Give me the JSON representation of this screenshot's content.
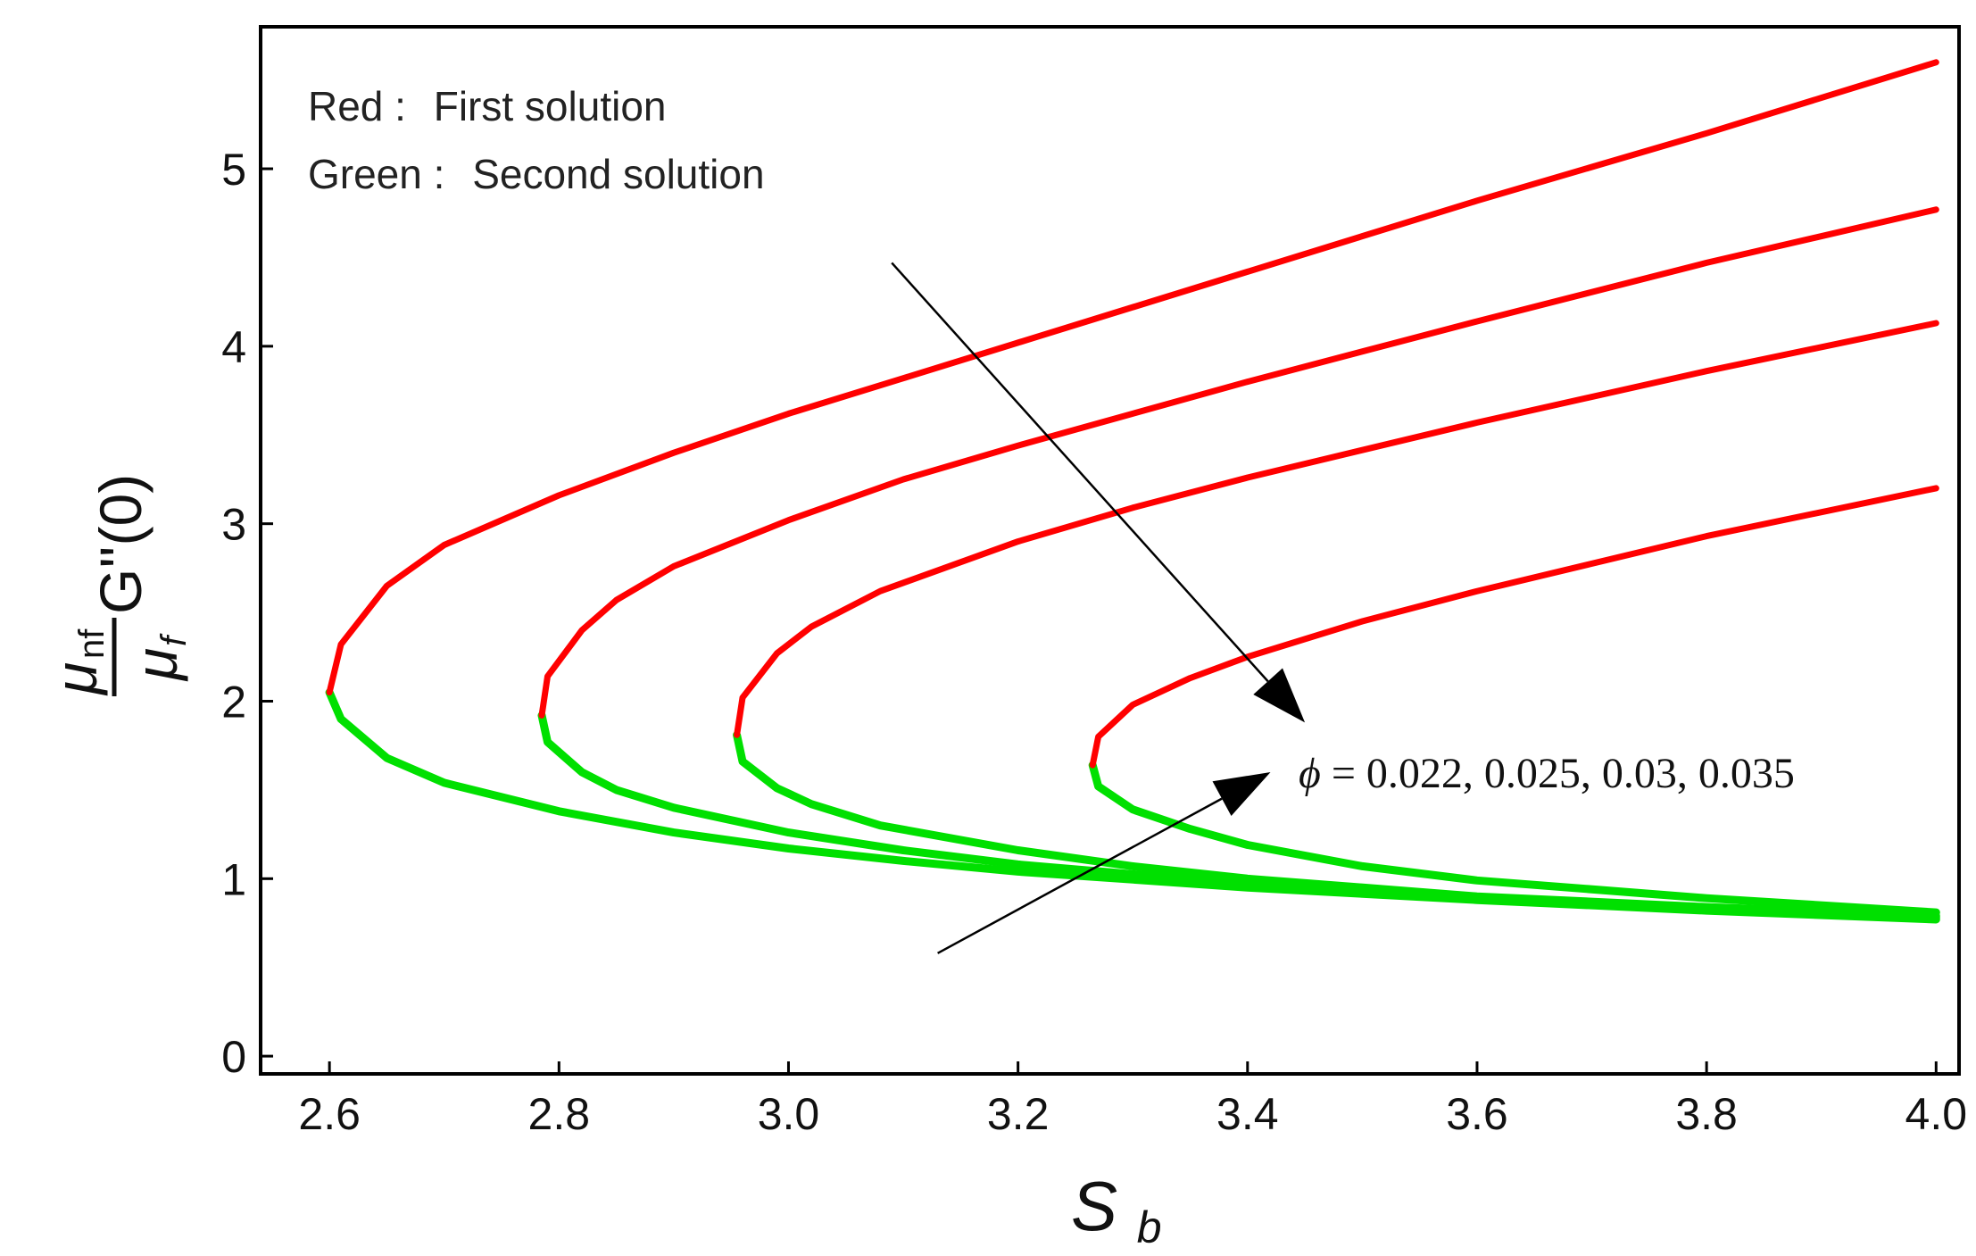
{
  "chart_data": {
    "type": "line",
    "xlabel": {
      "main": "S",
      "sub": "b"
    },
    "ylabel": {
      "num_main": "μ",
      "num_sub": "nf",
      "den_main": "μ",
      "den_sub": "f",
      "expr": "G''(0)"
    },
    "xlim": [
      2.54,
      4.02
    ],
    "ylim": [
      -0.1,
      5.8
    ],
    "x_ticks": [
      2.6,
      2.8,
      3.0,
      3.2,
      3.4,
      3.6,
      3.8,
      4.0
    ],
    "x_tick_labels": [
      "2.6",
      "2.8",
      "3.0",
      "3.2",
      "3.4",
      "3.6",
      "3.8",
      "4.0"
    ],
    "y_ticks": [
      0,
      1,
      2,
      3,
      4,
      5
    ],
    "y_tick_labels": [
      "0",
      "1",
      "2",
      "3",
      "4",
      "5"
    ],
    "legend": {
      "placement": "top-left",
      "lines": [
        {
          "label": "Red :",
          "text": "First solution"
        },
        {
          "label": "Green :",
          "text": "Second solution"
        }
      ]
    },
    "annotation": {
      "symbol": "ϕ",
      "text": " = 0.022, 0.025, 0.03, 0.035"
    },
    "colors": {
      "first": "#ff0000",
      "second": "#00e000",
      "frame": "#000000",
      "arrow": "#000000"
    },
    "series": [
      {
        "phi": 0.022,
        "first": {
          "x": [
            2.6,
            2.61,
            2.65,
            2.7,
            2.8,
            2.9,
            3.0,
            3.1,
            3.2,
            3.4,
            3.6,
            3.8,
            4.0
          ],
          "y": [
            2.05,
            2.32,
            2.65,
            2.88,
            3.16,
            3.4,
            3.62,
            3.82,
            4.02,
            4.42,
            4.82,
            5.2,
            5.6
          ]
        },
        "second": {
          "x": [
            2.6,
            2.61,
            2.65,
            2.7,
            2.8,
            2.9,
            3.0,
            3.1,
            3.2,
            3.4,
            3.6,
            3.8,
            4.0
          ],
          "y": [
            2.05,
            1.9,
            1.68,
            1.54,
            1.38,
            1.26,
            1.17,
            1.1,
            1.04,
            0.95,
            0.88,
            0.82,
            0.77
          ]
        }
      },
      {
        "phi": 0.025,
        "first": {
          "x": [
            2.785,
            2.79,
            2.82,
            2.85,
            2.9,
            3.0,
            3.1,
            3.2,
            3.4,
            3.6,
            3.8,
            4.0
          ],
          "y": [
            1.92,
            2.14,
            2.4,
            2.57,
            2.76,
            3.02,
            3.25,
            3.44,
            3.8,
            4.14,
            4.47,
            4.77
          ]
        },
        "second": {
          "x": [
            2.785,
            2.79,
            2.82,
            2.85,
            2.9,
            3.0,
            3.1,
            3.2,
            3.4,
            3.6,
            3.8,
            4.0
          ],
          "y": [
            1.92,
            1.77,
            1.6,
            1.5,
            1.4,
            1.26,
            1.16,
            1.08,
            0.97,
            0.89,
            0.83,
            0.78
          ]
        }
      },
      {
        "phi": 0.03,
        "first": {
          "x": [
            2.955,
            2.96,
            2.99,
            3.02,
            3.08,
            3.2,
            3.3,
            3.4,
            3.6,
            3.8,
            4.0
          ],
          "y": [
            1.81,
            2.02,
            2.27,
            2.42,
            2.62,
            2.9,
            3.09,
            3.26,
            3.57,
            3.86,
            4.13
          ]
        },
        "second": {
          "x": [
            2.955,
            2.96,
            2.99,
            3.02,
            3.08,
            3.2,
            3.3,
            3.4,
            3.6,
            3.8,
            4.0
          ],
          "y": [
            1.81,
            1.66,
            1.51,
            1.42,
            1.3,
            1.16,
            1.07,
            1.0,
            0.9,
            0.84,
            0.79
          ]
        }
      },
      {
        "phi": 0.035,
        "first": {
          "x": [
            3.265,
            3.27,
            3.3,
            3.35,
            3.4,
            3.5,
            3.6,
            3.8,
            4.0
          ],
          "y": [
            1.64,
            1.8,
            1.98,
            2.13,
            2.25,
            2.45,
            2.62,
            2.93,
            3.2
          ]
        },
        "second": {
          "x": [
            3.265,
            3.27,
            3.3,
            3.35,
            3.4,
            3.5,
            3.6,
            3.8,
            4.0
          ],
          "y": [
            1.64,
            1.52,
            1.39,
            1.28,
            1.19,
            1.07,
            0.99,
            0.89,
            0.81
          ]
        }
      }
    ],
    "arrows": [
      {
        "from": [
          3.09,
          4.47
        ],
        "to": [
          3.45,
          1.88
        ]
      },
      {
        "from": [
          3.13,
          0.58
        ],
        "to": [
          3.42,
          1.6
        ]
      }
    ]
  }
}
